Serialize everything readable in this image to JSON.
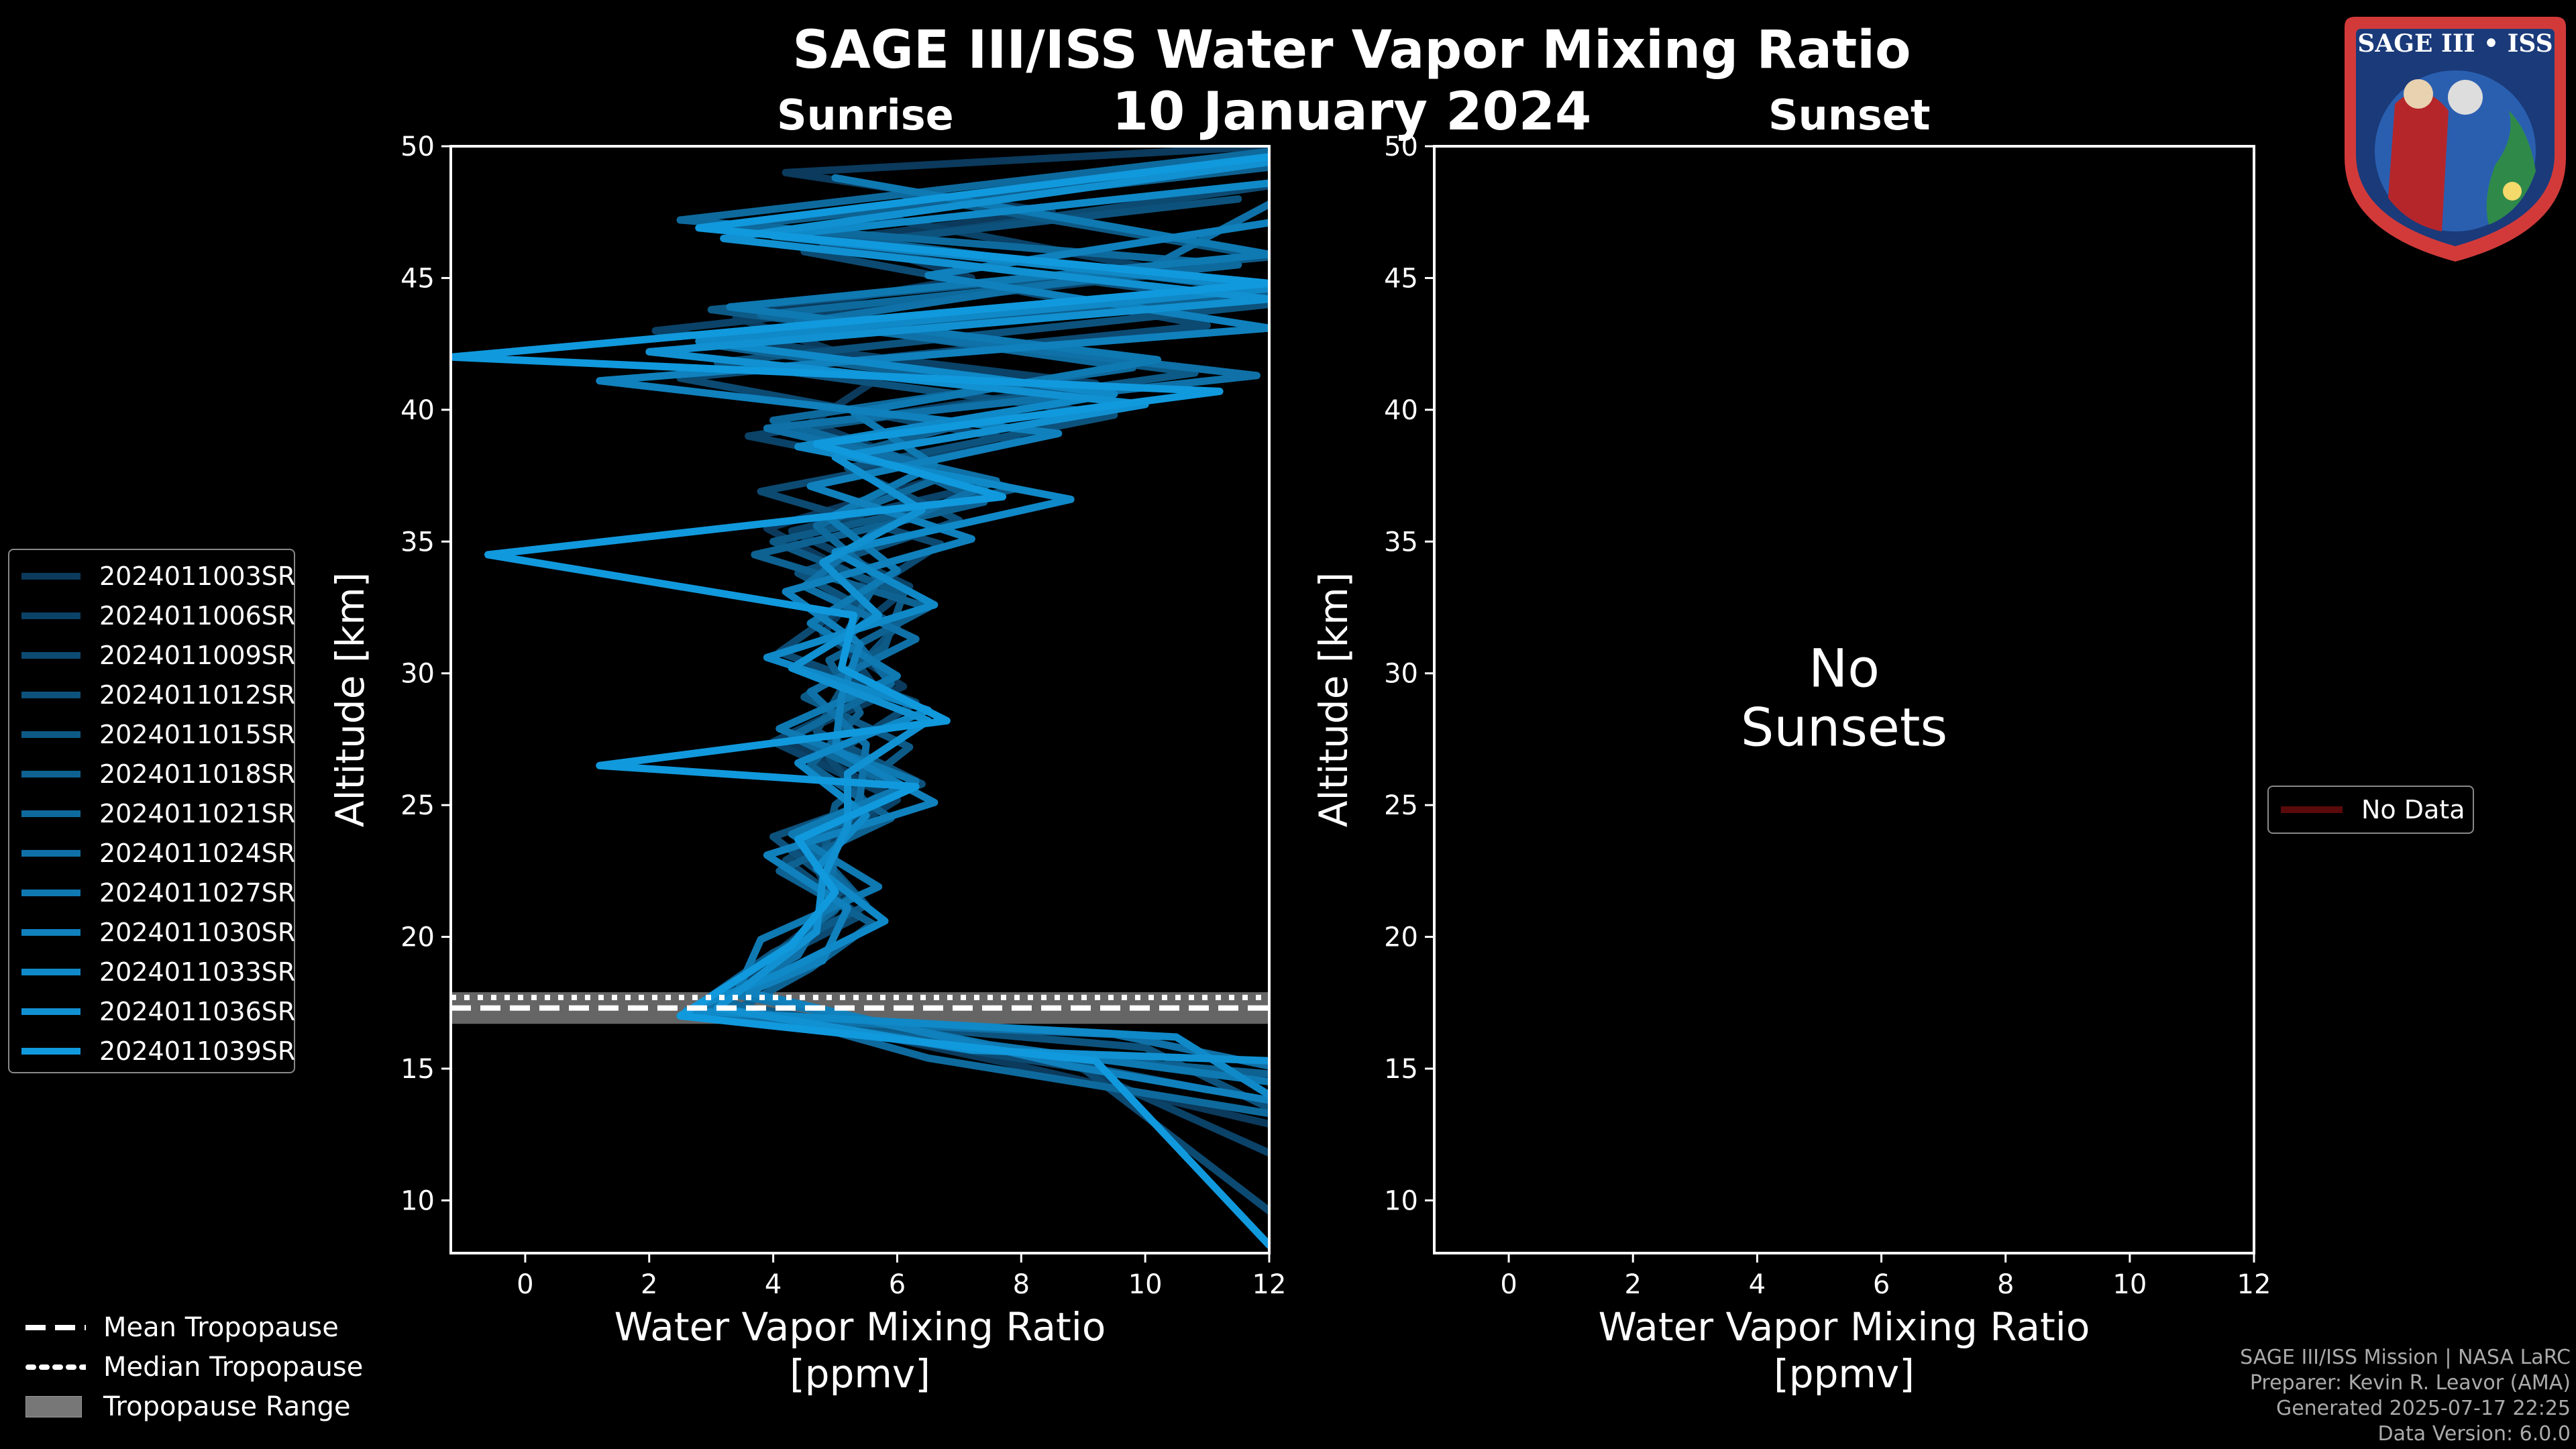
{
  "header": {
    "title": "SAGE III/ISS Water Vapor Mixing Ratio",
    "date": "10 January 2024",
    "sunrise_label": "Sunrise",
    "sunset_label": "Sunset"
  },
  "logo": {
    "text": "SAGE III • ISS"
  },
  "colors": {
    "series_dark": "#0b3a5c",
    "series_bright": "#1199dd",
    "no_data": "#5a0a0a",
    "trop_range": "#777777"
  },
  "left_legend": {
    "items": [
      "2024011003SR",
      "2024011006SR",
      "2024011009SR",
      "2024011012SR",
      "2024011015SR",
      "2024011018SR",
      "2024011021SR",
      "2024011024SR",
      "2024011027SR",
      "2024011030SR",
      "2024011033SR",
      "2024011036SR",
      "2024011039SR"
    ]
  },
  "right_legend": {
    "items": [
      "No Data"
    ]
  },
  "bottom_legend": {
    "mean": "Mean Tropopause",
    "median": "Median Tropopause",
    "range": "Tropopause Range"
  },
  "no_data_text": [
    "No",
    "Sunsets"
  ],
  "credits": [
    "SAGE III/ISS Mission | NASA LaRC",
    "Preparer: Kevin R. Leavor (AMA)",
    "Generated 2025-07-17 22:25",
    "Data Version: 6.0.0"
  ],
  "chart_data": [
    {
      "type": "line",
      "panel": "sunrise",
      "xlabel": "Water Vapor Mixing Ratio\n[ppmv]",
      "ylabel": "Altitude [km]",
      "xlim": [
        -1.2,
        12
      ],
      "ylim": [
        8,
        50
      ],
      "xticks": [
        0,
        2,
        4,
        6,
        8,
        10,
        12
      ],
      "yticks": [
        10,
        15,
        20,
        25,
        30,
        35,
        40,
        45,
        50
      ],
      "tropopause": {
        "mean": 17.3,
        "median": 17.7,
        "range": [
          16.7,
          17.9
        ]
      },
      "series": [
        {
          "name": "2024011003SR",
          "x": [
            12,
            7.8,
            3.2,
            4.1,
            5.2,
            4.4,
            5.8,
            4.2,
            6.1,
            4.8,
            5.5,
            3.9,
            6.8,
            4.6,
            5.9,
            3.4,
            7.2,
            5.1,
            8.5,
            4.2,
            12
          ],
          "y": [
            12.9,
            15.2,
            17.5,
            19.5,
            21.5,
            23.5,
            25.5,
            27.5,
            29.5,
            31.5,
            33.5,
            35.5,
            37.5,
            39.5,
            41.5,
            43.5,
            45.0,
            46.5,
            47.5,
            49.0,
            50.0
          ]
        },
        {
          "name": "2024011006SR",
          "x": [
            12,
            8.5,
            3.0,
            4.3,
            5.0,
            4.6,
            6.0,
            4.0,
            5.7,
            5.1,
            6.2,
            4.3,
            7.5,
            3.6,
            9.2,
            2.1,
            10.5,
            5.3,
            12
          ],
          "y": [
            11.8,
            15.5,
            17.4,
            19.2,
            21.0,
            23.2,
            25.2,
            27.4,
            29.3,
            31.2,
            33.3,
            35.4,
            37.2,
            39.0,
            41.0,
            43.0,
            45.2,
            47.5,
            49.5
          ]
        },
        {
          "name": "2024011009SR",
          "x": [
            12,
            9.0,
            2.8,
            3.9,
            5.4,
            4.2,
            5.6,
            4.9,
            6.3,
            4.1,
            5.3,
            6.7,
            3.8,
            8.0,
            2.5,
            11.0,
            4.5,
            12
          ],
          "y": [
            9.6,
            15.0,
            17.3,
            19.0,
            20.8,
            22.9,
            24.8,
            26.8,
            28.9,
            30.8,
            32.8,
            34.9,
            36.9,
            38.8,
            41.2,
            43.2,
            46.0,
            48.5
          ]
        },
        {
          "name": "2024011012SR",
          "x": [
            12,
            10.0,
            3.1,
            4.5,
            5.1,
            4.0,
            6.4,
            4.7,
            5.2,
            6.0,
            4.4,
            7.0,
            5.2,
            9.5,
            3.1,
            12,
            4.8,
            11.5
          ],
          "y": [
            13.5,
            15.8,
            17.2,
            19.8,
            21.8,
            23.8,
            25.8,
            27.8,
            29.8,
            31.8,
            33.8,
            35.8,
            37.8,
            39.8,
            41.8,
            44.0,
            46.2,
            48.0
          ]
        },
        {
          "name": "2024011015SR",
          "x": [
            11,
            7.0,
            2.9,
            4.0,
            5.5,
            4.8,
            5.0,
            6.2,
            4.5,
            5.8,
            6.1,
            4.0,
            7.9,
            4.2,
            10.8,
            3.0,
            12,
            6.0
          ],
          "y": [
            14.2,
            16.0,
            17.6,
            19.4,
            21.2,
            23.0,
            25.0,
            27.2,
            29.1,
            31.0,
            33.0,
            35.0,
            37.0,
            39.2,
            41.4,
            43.8,
            45.8,
            48.2
          ]
        },
        {
          "name": "2024011018SR",
          "x": [
            12,
            8.0,
            3.3,
            4.6,
            5.6,
            4.1,
            5.9,
            4.6,
            5.4,
            4.9,
            6.5,
            3.7,
            7.4,
            5.5,
            8.8,
            2.9,
            12,
            3.5,
            12
          ],
          "y": [
            14.8,
            15.6,
            17.1,
            18.8,
            20.5,
            22.5,
            24.5,
            26.5,
            28.5,
            30.5,
            32.5,
            34.5,
            36.5,
            38.5,
            40.5,
            42.5,
            44.5,
            47.0,
            49.2
          ]
        },
        {
          "name": "2024011021SR",
          "x": [
            12,
            6.5,
            3.0,
            4.2,
            5.3,
            4.5,
            6.1,
            4.3,
            5.9,
            5.2,
            5.7,
            4.7,
            6.9,
            4.0,
            9.8,
            3.8,
            11.5,
            2.5,
            12
          ],
          "y": [
            13.3,
            15.4,
            17.7,
            19.6,
            21.6,
            23.6,
            25.6,
            27.6,
            29.6,
            31.6,
            33.6,
            35.6,
            37.6,
            39.6,
            41.6,
            43.6,
            45.5,
            47.2,
            49.8
          ]
        },
        {
          "name": "2024011024SR",
          "x": [
            12,
            9.5,
            2.7,
            4.4,
            4.9,
            5.0,
            5.4,
            5.5,
            4.6,
            6.3,
            4.5,
            5.6,
            7.6,
            3.9,
            11.8,
            4.4,
            10.0,
            12
          ],
          "y": [
            15.1,
            16.3,
            17.0,
            19.3,
            21.3,
            23.3,
            25.3,
            27.3,
            29.3,
            31.3,
            33.3,
            35.3,
            37.3,
            39.3,
            41.3,
            43.3,
            45.3,
            47.8
          ]
        },
        {
          "name": "2024011027SR",
          "x": [
            12,
            7.5,
            3.4,
            3.8,
            5.7,
            4.3,
            6.3,
            4.1,
            6.0,
            4.6,
            6.0,
            4.9,
            6.6,
            5.3,
            10.2,
            3.3,
            12,
            5.0
          ],
          "y": [
            14.5,
            15.9,
            17.8,
            19.9,
            21.9,
            23.9,
            25.9,
            27.9,
            29.9,
            31.9,
            33.9,
            35.9,
            37.9,
            39.9,
            41.9,
            43.9,
            45.9,
            48.8
          ]
        },
        {
          "name": "2024011030SR",
          "x": [
            12,
            8.8,
            3.6,
            4.8,
            5.2,
            3.9,
            6.6,
            5.0,
            5.1,
            5.4,
            4.2,
            7.2,
            4.6,
            8.6,
            1.2,
            12,
            6.5,
            12
          ],
          "y": [
            13.8,
            15.1,
            17.9,
            19.1,
            21.1,
            23.1,
            25.1,
            27.1,
            29.1,
            31.1,
            33.1,
            35.1,
            37.1,
            39.1,
            41.1,
            43.1,
            45.1,
            47.1
          ]
        },
        {
          "name": "2024011033SR",
          "x": [
            12,
            10.5,
            2.6,
            4.1,
            5.8,
            4.7,
            5.5,
            4.4,
            6.5,
            3.9,
            6.6,
            5.0,
            8.8,
            4.4,
            9.5,
            2.8,
            12,
            4.0,
            12
          ],
          "y": [
            14.0,
            16.2,
            17.2,
            18.6,
            20.6,
            22.6,
            24.6,
            26.6,
            28.6,
            30.6,
            32.6,
            34.6,
            36.6,
            38.6,
            40.6,
            42.6,
            44.6,
            46.6,
            48.6
          ]
        },
        {
          "name": "2024011036SR",
          "x": [
            12,
            7.2,
            3.1,
            4.7,
            4.8,
            5.2,
            5.2,
            6.5,
            4.3,
            5.7,
            4.8,
            6.4,
            5.0,
            10.0,
            2.0,
            12,
            3.2,
            12
          ],
          "y": [
            15.3,
            15.7,
            17.3,
            20.2,
            22.2,
            24.2,
            26.2,
            28.2,
            30.2,
            32.2,
            34.2,
            36.2,
            38.2,
            40.2,
            42.2,
            44.2,
            46.5,
            49.4
          ]
        },
        {
          "name": "2024011039SR",
          "x": [
            12,
            9.2,
            2.5,
            4.3,
            5.0,
            4.4,
            6.3,
            1.2,
            6.8,
            5.1,
            5.3,
            -0.6,
            7.7,
            4.7,
            11.2,
            -1.2,
            12,
            2.8,
            12
          ],
          "y": [
            8.3,
            15.3,
            17.0,
            19.7,
            21.7,
            23.7,
            25.7,
            26.5,
            28.2,
            30.2,
            32.2,
            34.5,
            36.7,
            38.7,
            40.7,
            42.0,
            44.8,
            46.9,
            49.6
          ]
        }
      ]
    },
    {
      "type": "line",
      "panel": "sunset",
      "xlabel": "Water Vapor Mixing Ratio\n[ppmv]",
      "ylabel": "Altitude [km]",
      "xlim": [
        -1.2,
        12
      ],
      "ylim": [
        8,
        50
      ],
      "xticks": [
        0,
        2,
        4,
        6,
        8,
        10,
        12
      ],
      "yticks": [
        10,
        15,
        20,
        25,
        30,
        35,
        40,
        45,
        50
      ],
      "series": []
    }
  ]
}
